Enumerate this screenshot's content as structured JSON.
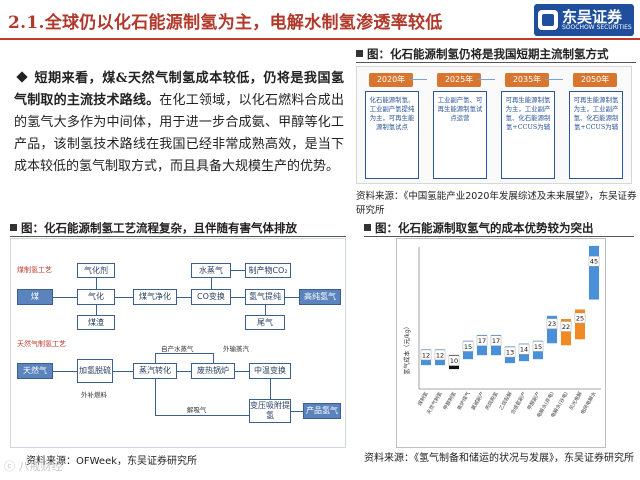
{
  "header": {
    "title": "2.1.全球仍以化石能源制氢为主，电解水制氢渗透率较低",
    "logo_cn": "东吴证券",
    "logo_en": "SOOCHOW SECURITIES"
  },
  "bullet": {
    "bold": "短期来看，煤&天然气制氢成本较低，仍将是我国氢气制取的主流技术路线。",
    "text": "在化工领域，以化石燃料合成出的氢气大多作为中间体，用于进一步合成氨、甲醇等化工产品，该制氢技术路线在我国已经非常成熟高效，是当下成本较低的氢气制取方式，而且具备大规模生产的优势。"
  },
  "figure_top_right": {
    "title": "图：化石能源制氢仍将是我国短期主流制氢方式",
    "columns": [
      {
        "year": "2020年",
        "text": "化石能源制氢、工业副产氢提纯为主，可再生能源制氢试点"
      },
      {
        "year": "2025年",
        "text": "工业副产氢、可再生能源制氢试点运营"
      },
      {
        "year": "2035年",
        "text": "可再生能源制氢为主，工业副产氢、化石能源制氢+CCUS为辅"
      },
      {
        "year": "2050年",
        "text": "可再生能源制氢为主，工业副产氢、化石能源制氢+CCUS为辅"
      }
    ],
    "source": "资料来源：《中国氢能产业2020年发展综述及未来展望》，东吴证券研究所"
  },
  "figure_bottom_left": {
    "title": "图：化石能源制氢工艺流程复杂，且伴随有害气体排放",
    "coal_label": "煤制氢工艺",
    "gas_label": "天然气制氢工艺",
    "coal_boxes": [
      "气化剂",
      "煤",
      "气化",
      "煤渣",
      "煤气净化",
      "水蒸气",
      "CO变换",
      "制产物CO₂",
      "氢气提纯",
      "尾气",
      "高纯氢气"
    ],
    "gas_boxes": [
      "天然气",
      "加氢脱硫",
      "蒸汽转化",
      "废热锅炉",
      "中温变换",
      "变压吸附提氢",
      "产品氢气"
    ],
    "gas_lines": [
      "自产水蒸气",
      "外输蒸汽",
      "外补燃料",
      "解吸气"
    ],
    "source": "资料来源：OFWeek，东吴证券研究所"
  },
  "figure_bottom_right": {
    "title": "图：化石能源制取氢气的成本优势较为突出",
    "source": "资料来源：《氢气制备和储运的状况与发展》，东吴证券研究所"
  },
  "chart_data": {
    "type": "bar",
    "title": "",
    "xlabel": "",
    "ylabel": "氢气成本（元/kg）",
    "ylim": [
      0,
      50
    ],
    "values": [
      12,
      12,
      10,
      15,
      17,
      17,
      13,
      14,
      15,
      23,
      22,
      25,
      45
    ],
    "labels": [
      "12",
      "12",
      "10",
      "15",
      "17",
      "17",
      "13",
      "14",
      "15",
      "23",
      "22",
      "25",
      "45"
    ],
    "categories": [
      "煤制氢",
      "天然气制氢",
      "甲醇制氢",
      "焦炉煤气",
      "氯碱副产",
      "丙烷脱氢",
      "乙烷裂解",
      "合成氨副产",
      "甲醇副产",
      "电解水(弃电)",
      "电解水(谷电)",
      "风光电解",
      "电网电解水"
    ],
    "bar_colors": [
      "#4a90d9",
      "#4a90d9",
      "#111111",
      "#4a90d9",
      "#4a90d9",
      "#4a90d9",
      "#4a90d9",
      "#4a90d9",
      "#4a90d9",
      "#4a90d9",
      "#f08a24",
      "#f08a24",
      "#4a90d9"
    ],
    "grid": false
  },
  "watermark": "ⓒ 八戒财经"
}
